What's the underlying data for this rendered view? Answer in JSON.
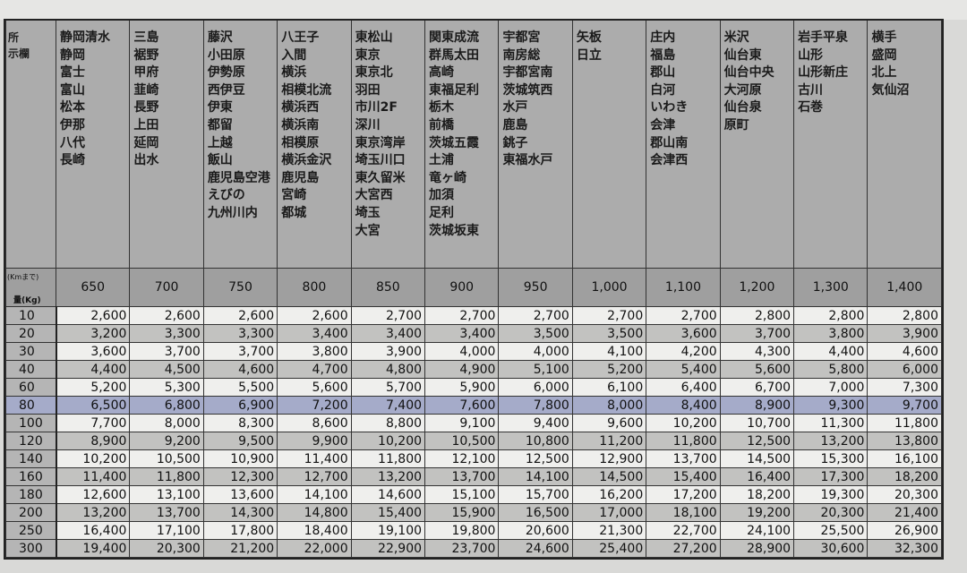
{
  "header": {
    "corner_line1": "所",
    "corner_line2": "示欄",
    "distance_label": "(Kmまで)",
    "weight_label": "量(Kg)"
  },
  "columns": [
    {
      "distance": "650",
      "places": [
        "静岡清水",
        "静岡",
        "富士",
        "富山",
        "松本",
        "伊那",
        "八代",
        "長崎"
      ]
    },
    {
      "distance": "700",
      "places": [
        "三島",
        "裾野",
        "甲府",
        "韮崎",
        "長野",
        "上田",
        "延岡",
        "出水"
      ]
    },
    {
      "distance": "750",
      "places": [
        "藤沢",
        "小田原",
        "伊勢原",
        "西伊豆",
        "伊東",
        "都留",
        "上越",
        "飯山",
        "鹿児島空港",
        "えびの",
        "九州川内"
      ]
    },
    {
      "distance": "800",
      "places": [
        "八王子",
        "入間",
        "横浜",
        "相模北流",
        "横浜西",
        "横浜南",
        "相模原",
        "横浜金沢",
        "鹿児島",
        "宮崎",
        "都城"
      ]
    },
    {
      "distance": "850",
      "places": [
        "東松山",
        "東京",
        "東京北",
        "羽田",
        "市川2F",
        "深川",
        "東京湾岸",
        "埼玉川口",
        "東久留米",
        "大宮西",
        "埼玉",
        "大宮"
      ]
    },
    {
      "distance": "900",
      "places": [
        "関東成流",
        "群馬太田",
        "高崎",
        "東福足利",
        "栃木",
        "前橋",
        "茨城五霞",
        "土浦",
        "竜ヶ崎",
        "加須",
        "足利",
        "茨城坂東"
      ]
    },
    {
      "distance": "950",
      "places": [
        "宇都宮",
        "南房総",
        "宇都宮南",
        "茨城筑西",
        "水戸",
        "鹿島",
        "銚子",
        "東福水戸"
      ]
    },
    {
      "distance": "1,000",
      "places": [
        "矢板",
        "日立"
      ]
    },
    {
      "distance": "1,100",
      "places": [
        "庄内",
        "福島",
        "郡山",
        "白河",
        "いわき",
        "会津",
        "郡山南",
        "会津西"
      ]
    },
    {
      "distance": "1,200",
      "places": [
        "米沢",
        "仙台東",
        "仙台中央",
        "大河原",
        "仙台泉",
        "原町"
      ]
    },
    {
      "distance": "1,300",
      "places": [
        "岩手平泉",
        "山形",
        "山形新庄",
        "古川",
        "石巻"
      ]
    },
    {
      "distance": "1,400",
      "places": [
        "横手",
        "盛岡",
        "北上",
        "気仙沼"
      ]
    }
  ],
  "rows": [
    {
      "weight": "10",
      "shade": "w",
      "values": [
        "2,600",
        "2,600",
        "2,600",
        "2,600",
        "2,700",
        "2,700",
        "2,700",
        "2,700",
        "2,700",
        "2,800",
        "2,800",
        "2,800"
      ]
    },
    {
      "weight": "20",
      "shade": "g",
      "values": [
        "3,200",
        "3,300",
        "3,300",
        "3,400",
        "3,400",
        "3,400",
        "3,500",
        "3,500",
        "3,600",
        "3,700",
        "3,800",
        "3,900"
      ]
    },
    {
      "weight": "30",
      "shade": "w",
      "values": [
        "3,600",
        "3,700",
        "3,700",
        "3,800",
        "3,900",
        "4,000",
        "4,000",
        "4,100",
        "4,200",
        "4,300",
        "4,400",
        "4,600"
      ]
    },
    {
      "weight": "40",
      "shade": "g",
      "values": [
        "4,400",
        "4,500",
        "4,600",
        "4,700",
        "4,800",
        "4,900",
        "5,100",
        "5,200",
        "5,400",
        "5,600",
        "5,800",
        "6,000"
      ]
    },
    {
      "weight": "60",
      "shade": "w",
      "values": [
        "5,200",
        "5,300",
        "5,500",
        "5,600",
        "5,700",
        "5,900",
        "6,000",
        "6,100",
        "6,400",
        "6,700",
        "7,000",
        "7,300"
      ]
    },
    {
      "weight": "80",
      "shade": "h",
      "values": [
        "6,500",
        "6,800",
        "6,900",
        "7,200",
        "7,400",
        "7,600",
        "7,800",
        "8,000",
        "8,400",
        "8,900",
        "9,300",
        "9,700"
      ]
    },
    {
      "weight": "100",
      "shade": "w",
      "values": [
        "7,700",
        "8,000",
        "8,300",
        "8,600",
        "8,800",
        "9,100",
        "9,400",
        "9,600",
        "10,200",
        "10,700",
        "11,300",
        "11,800"
      ]
    },
    {
      "weight": "120",
      "shade": "g",
      "values": [
        "8,900",
        "9,200",
        "9,500",
        "9,900",
        "10,200",
        "10,500",
        "10,800",
        "11,200",
        "11,800",
        "12,500",
        "13,200",
        "13,800"
      ]
    },
    {
      "weight": "140",
      "shade": "w",
      "values": [
        "10,200",
        "10,500",
        "10,900",
        "11,400",
        "11,800",
        "12,100",
        "12,500",
        "12,900",
        "13,700",
        "14,500",
        "15,300",
        "16,100"
      ]
    },
    {
      "weight": "160",
      "shade": "g",
      "values": [
        "11,400",
        "11,800",
        "12,300",
        "12,700",
        "13,200",
        "13,700",
        "14,100",
        "14,500",
        "15,400",
        "16,400",
        "17,300",
        "18,200"
      ]
    },
    {
      "weight": "180",
      "shade": "w",
      "values": [
        "12,600",
        "13,100",
        "13,600",
        "14,100",
        "14,600",
        "15,100",
        "15,700",
        "16,200",
        "17,200",
        "18,200",
        "19,300",
        "20,300"
      ]
    },
    {
      "weight": "200",
      "shade": "g",
      "values": [
        "13,200",
        "13,700",
        "14,300",
        "14,800",
        "15,400",
        "15,900",
        "16,500",
        "17,000",
        "18,100",
        "19,200",
        "20,300",
        "21,400"
      ]
    },
    {
      "weight": "250",
      "shade": "w",
      "values": [
        "16,400",
        "17,100",
        "17,800",
        "18,400",
        "19,100",
        "19,800",
        "20,600",
        "21,300",
        "22,700",
        "24,100",
        "25,500",
        "26,900"
      ]
    },
    {
      "weight": "300",
      "shade": "g",
      "values": [
        "19,400",
        "20,300",
        "21,200",
        "22,000",
        "22,900",
        "23,700",
        "24,600",
        "25,400",
        "27,200",
        "28,900",
        "30,600",
        "32,300"
      ]
    }
  ],
  "colors": {
    "highlight_row": "#a5abc9",
    "header_bg": "#acacac"
  }
}
